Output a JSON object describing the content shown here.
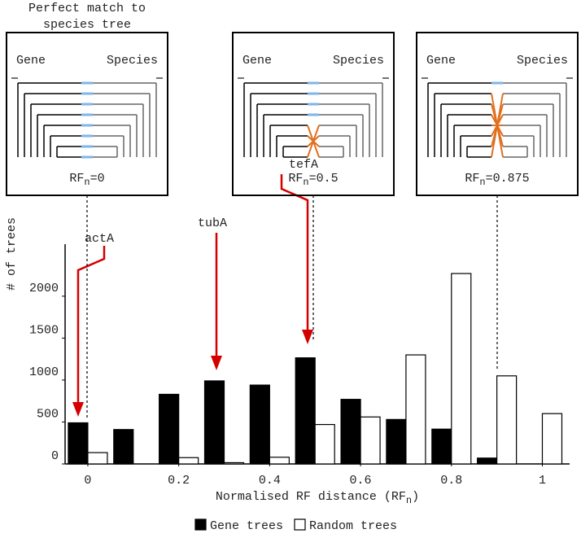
{
  "chart_data": {
    "type": "bar",
    "ylabel": "# of trees",
    "xlabel": {
      "text": "Normalised RF distance (RF",
      "sub": "n",
      "end": ")"
    },
    "x": [
      0,
      0.1,
      0.2,
      0.3,
      0.4,
      0.5,
      0.6,
      0.7,
      0.8,
      0.9,
      1
    ],
    "series": [
      {
        "name": "Gene trees",
        "color": "#000000",
        "values": [
          490,
          410,
          830,
          990,
          940,
          1265,
          770,
          530,
          415,
          70,
          0
        ]
      },
      {
        "name": "Random trees",
        "color": "#ffffff",
        "values": [
          135,
          0,
          75,
          15,
          80,
          470,
          560,
          1300,
          2270,
          1050,
          600
        ]
      }
    ],
    "xlim": [
      -0.05,
      1.06
    ],
    "ylim": [
      0,
      2620
    ],
    "xticks": [
      0,
      0.2,
      0.4,
      0.6,
      0.8,
      1
    ],
    "yticks": [
      0,
      500,
      1000,
      1500,
      2000
    ],
    "annotations": [
      "actA",
      "tubA",
      "tefA"
    ],
    "insets": [
      {
        "title": [
          "Perfect match to",
          "species tree"
        ],
        "gene": "Gene",
        "species": "Species",
        "label": "RF",
        "sub": "n",
        "end": "=0"
      },
      {
        "gene": "Gene",
        "species": "Species",
        "label": "RF",
        "sub": "n",
        "end": "=0.5"
      },
      {
        "gene": "Gene",
        "species": "Species",
        "label": "RF",
        "sub": "n",
        "end": "=0.875"
      }
    ]
  }
}
